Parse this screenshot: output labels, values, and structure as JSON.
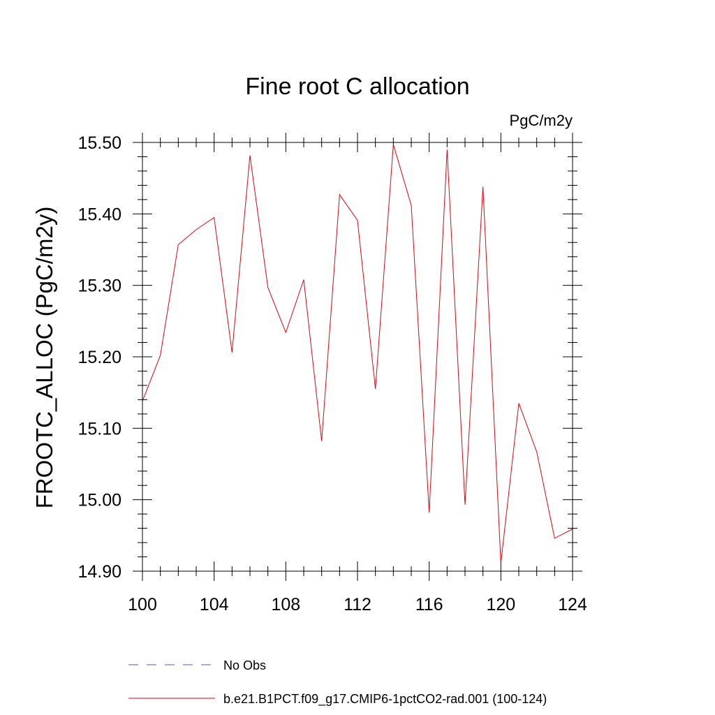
{
  "chart_data": {
    "type": "line",
    "title": "Fine root C allocation",
    "units_label": "PgC/m2y",
    "xlabel": "",
    "ylabel": "FROOTC_ALLOC  (PgC/m2y)",
    "xlim": [
      100,
      124
    ],
    "ylim": [
      14.9,
      15.5
    ],
    "x_ticks": [
      100,
      104,
      108,
      112,
      116,
      120,
      124
    ],
    "x_tick_labels": [
      "100",
      "104",
      "108",
      "112",
      "116",
      "120",
      "124"
    ],
    "y_ticks": [
      14.9,
      15.0,
      15.1,
      15.2,
      15.3,
      15.4,
      15.5
    ],
    "y_tick_labels": [
      "14.90",
      "15.00",
      "15.10",
      "15.20",
      "15.30",
      "15.40",
      "15.50"
    ],
    "grid": false,
    "legend_position": "bottom",
    "series": [
      {
        "name": "b.e21.B1PCT.f09_g17.CMIP6-1pctCO2-rad.001 (100-124)",
        "color": "#e8000b",
        "style": "solid",
        "x": [
          100,
          101,
          102,
          103,
          104,
          105,
          106,
          107,
          108,
          109,
          110,
          111,
          112,
          113,
          114,
          115,
          116,
          117,
          118,
          119,
          120,
          121,
          122,
          123,
          124
        ],
        "values": [
          15.138,
          15.202,
          15.357,
          15.378,
          15.395,
          15.206,
          15.482,
          15.297,
          15.234,
          15.308,
          15.082,
          15.427,
          15.391,
          15.155,
          15.497,
          15.412,
          14.982,
          15.49,
          14.993,
          15.438,
          14.911,
          15.135,
          15.067,
          14.946,
          14.959
        ]
      }
    ],
    "legend": [
      {
        "label": "No Obs",
        "color": "#5a4fcf",
        "style": "dashed"
      },
      {
        "label": "b.e21.B1PCT.f09_g17.CMIP6-1pctCO2-rad.001 (100-124)",
        "color": "#e8000b",
        "style": "solid"
      }
    ]
  }
}
